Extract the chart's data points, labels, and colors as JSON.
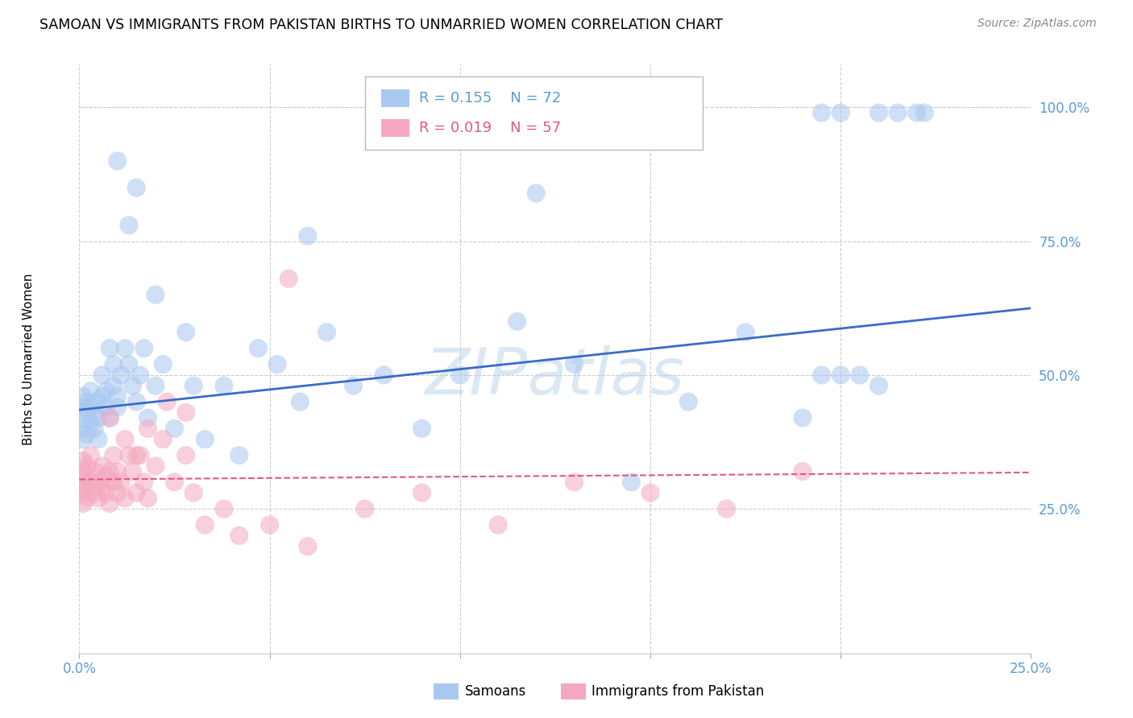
{
  "title": "SAMOAN VS IMMIGRANTS FROM PAKISTAN BIRTHS TO UNMARRIED WOMEN CORRELATION CHART",
  "source": "Source: ZipAtlas.com",
  "ylabel": "Births to Unmarried Women",
  "xlim": [
    0.0,
    0.25
  ],
  "ylim": [
    -0.02,
    1.08
  ],
  "x_ticks": [
    0.0,
    0.05,
    0.1,
    0.15,
    0.2,
    0.25
  ],
  "x_tick_show": [
    0.0,
    0.25
  ],
  "x_tick_labels_show": [
    "0.0%",
    "25.0%"
  ],
  "y_ticks": [
    0.25,
    0.5,
    0.75,
    1.0
  ],
  "y_tick_labels": [
    "25.0%",
    "50.0%",
    "75.0%",
    "100.0%"
  ],
  "blue_fill": "#A8C8F0",
  "pink_fill": "#F4A8C0",
  "blue_line_color": "#3A6BC8",
  "pink_line_color": "#E05888",
  "legend_blue_R": 0.155,
  "legend_blue_N": 72,
  "legend_pink_R": 0.019,
  "legend_pink_N": 57,
  "watermark": "ZIPatlas",
  "watermark_color": "#B0CCE8",
  "background_color": "#FFFFFF",
  "grid_color": "#CCCCCC",
  "axis_color": "#5B9BD5",
  "blue_scatter_x": [
    0.001,
    0.001,
    0.001,
    0.001,
    0.001,
    0.002,
    0.002,
    0.002,
    0.003,
    0.003,
    0.003,
    0.004,
    0.004,
    0.005,
    0.005,
    0.005,
    0.006,
    0.006,
    0.007,
    0.007,
    0.008,
    0.008,
    0.009,
    0.009,
    0.01,
    0.01,
    0.011,
    0.012,
    0.013,
    0.014,
    0.015,
    0.016,
    0.017,
    0.018,
    0.02,
    0.022,
    0.025,
    0.028,
    0.03,
    0.033,
    0.038,
    0.042,
    0.047,
    0.052,
    0.058,
    0.065,
    0.072,
    0.08,
    0.09,
    0.1,
    0.115,
    0.13,
    0.145,
    0.16,
    0.175,
    0.19,
    0.195,
    0.2,
    0.205,
    0.21,
    0.013,
    0.02,
    0.06,
    0.12,
    0.195,
    0.2,
    0.21,
    0.215,
    0.22,
    0.222,
    0.01,
    0.015
  ],
  "blue_scatter_y": [
    0.42,
    0.44,
    0.4,
    0.38,
    0.46,
    0.43,
    0.45,
    0.39,
    0.41,
    0.44,
    0.47,
    0.4,
    0.43,
    0.42,
    0.45,
    0.38,
    0.46,
    0.5,
    0.44,
    0.47,
    0.42,
    0.55,
    0.48,
    0.52,
    0.44,
    0.46,
    0.5,
    0.55,
    0.52,
    0.48,
    0.45,
    0.5,
    0.55,
    0.42,
    0.48,
    0.52,
    0.4,
    0.58,
    0.48,
    0.38,
    0.48,
    0.35,
    0.55,
    0.52,
    0.45,
    0.58,
    0.48,
    0.5,
    0.4,
    0.5,
    0.6,
    0.52,
    0.3,
    0.45,
    0.58,
    0.42,
    0.5,
    0.5,
    0.5,
    0.48,
    0.78,
    0.65,
    0.76,
    0.84,
    0.99,
    0.99,
    0.99,
    0.99,
    0.99,
    0.99,
    0.9,
    0.85
  ],
  "pink_scatter_x": [
    0.001,
    0.001,
    0.001,
    0.001,
    0.001,
    0.001,
    0.002,
    0.002,
    0.002,
    0.003,
    0.003,
    0.004,
    0.004,
    0.005,
    0.005,
    0.006,
    0.006,
    0.007,
    0.007,
    0.008,
    0.008,
    0.009,
    0.009,
    0.01,
    0.01,
    0.011,
    0.012,
    0.013,
    0.014,
    0.015,
    0.016,
    0.017,
    0.018,
    0.02,
    0.022,
    0.025,
    0.028,
    0.03,
    0.033,
    0.038,
    0.042,
    0.05,
    0.06,
    0.075,
    0.09,
    0.11,
    0.13,
    0.15,
    0.17,
    0.19,
    0.008,
    0.012,
    0.015,
    0.018,
    0.023,
    0.028,
    0.055
  ],
  "pink_scatter_y": [
    0.3,
    0.32,
    0.28,
    0.34,
    0.26,
    0.29,
    0.31,
    0.27,
    0.33,
    0.3,
    0.35,
    0.28,
    0.32,
    0.3,
    0.27,
    0.33,
    0.29,
    0.31,
    0.28,
    0.32,
    0.26,
    0.3,
    0.35,
    0.28,
    0.32,
    0.3,
    0.27,
    0.35,
    0.32,
    0.28,
    0.35,
    0.3,
    0.27,
    0.33,
    0.38,
    0.3,
    0.35,
    0.28,
    0.22,
    0.25,
    0.2,
    0.22,
    0.18,
    0.25,
    0.28,
    0.22,
    0.3,
    0.28,
    0.25,
    0.32,
    0.42,
    0.38,
    0.35,
    0.4,
    0.45,
    0.43,
    0.68
  ]
}
